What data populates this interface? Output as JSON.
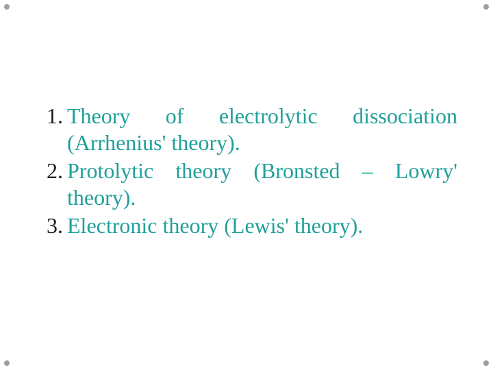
{
  "text_color": "#20a09a",
  "number_color": "#202020",
  "background_color": "#ffffff",
  "dot_color": "#9e9e9e",
  "font_family": "Palatino Linotype, Book Antiqua, Palatino, Georgia, serif",
  "font_size_pt": 24,
  "items": [
    {
      "text": "Theory of electrolytic dissociation (Arrhenius' theory)."
    },
    {
      "text": "Protolytic theory (Bronsted – Lowry' theory)."
    },
    {
      "text": "Electronic theory (Lewis' theory)."
    }
  ]
}
